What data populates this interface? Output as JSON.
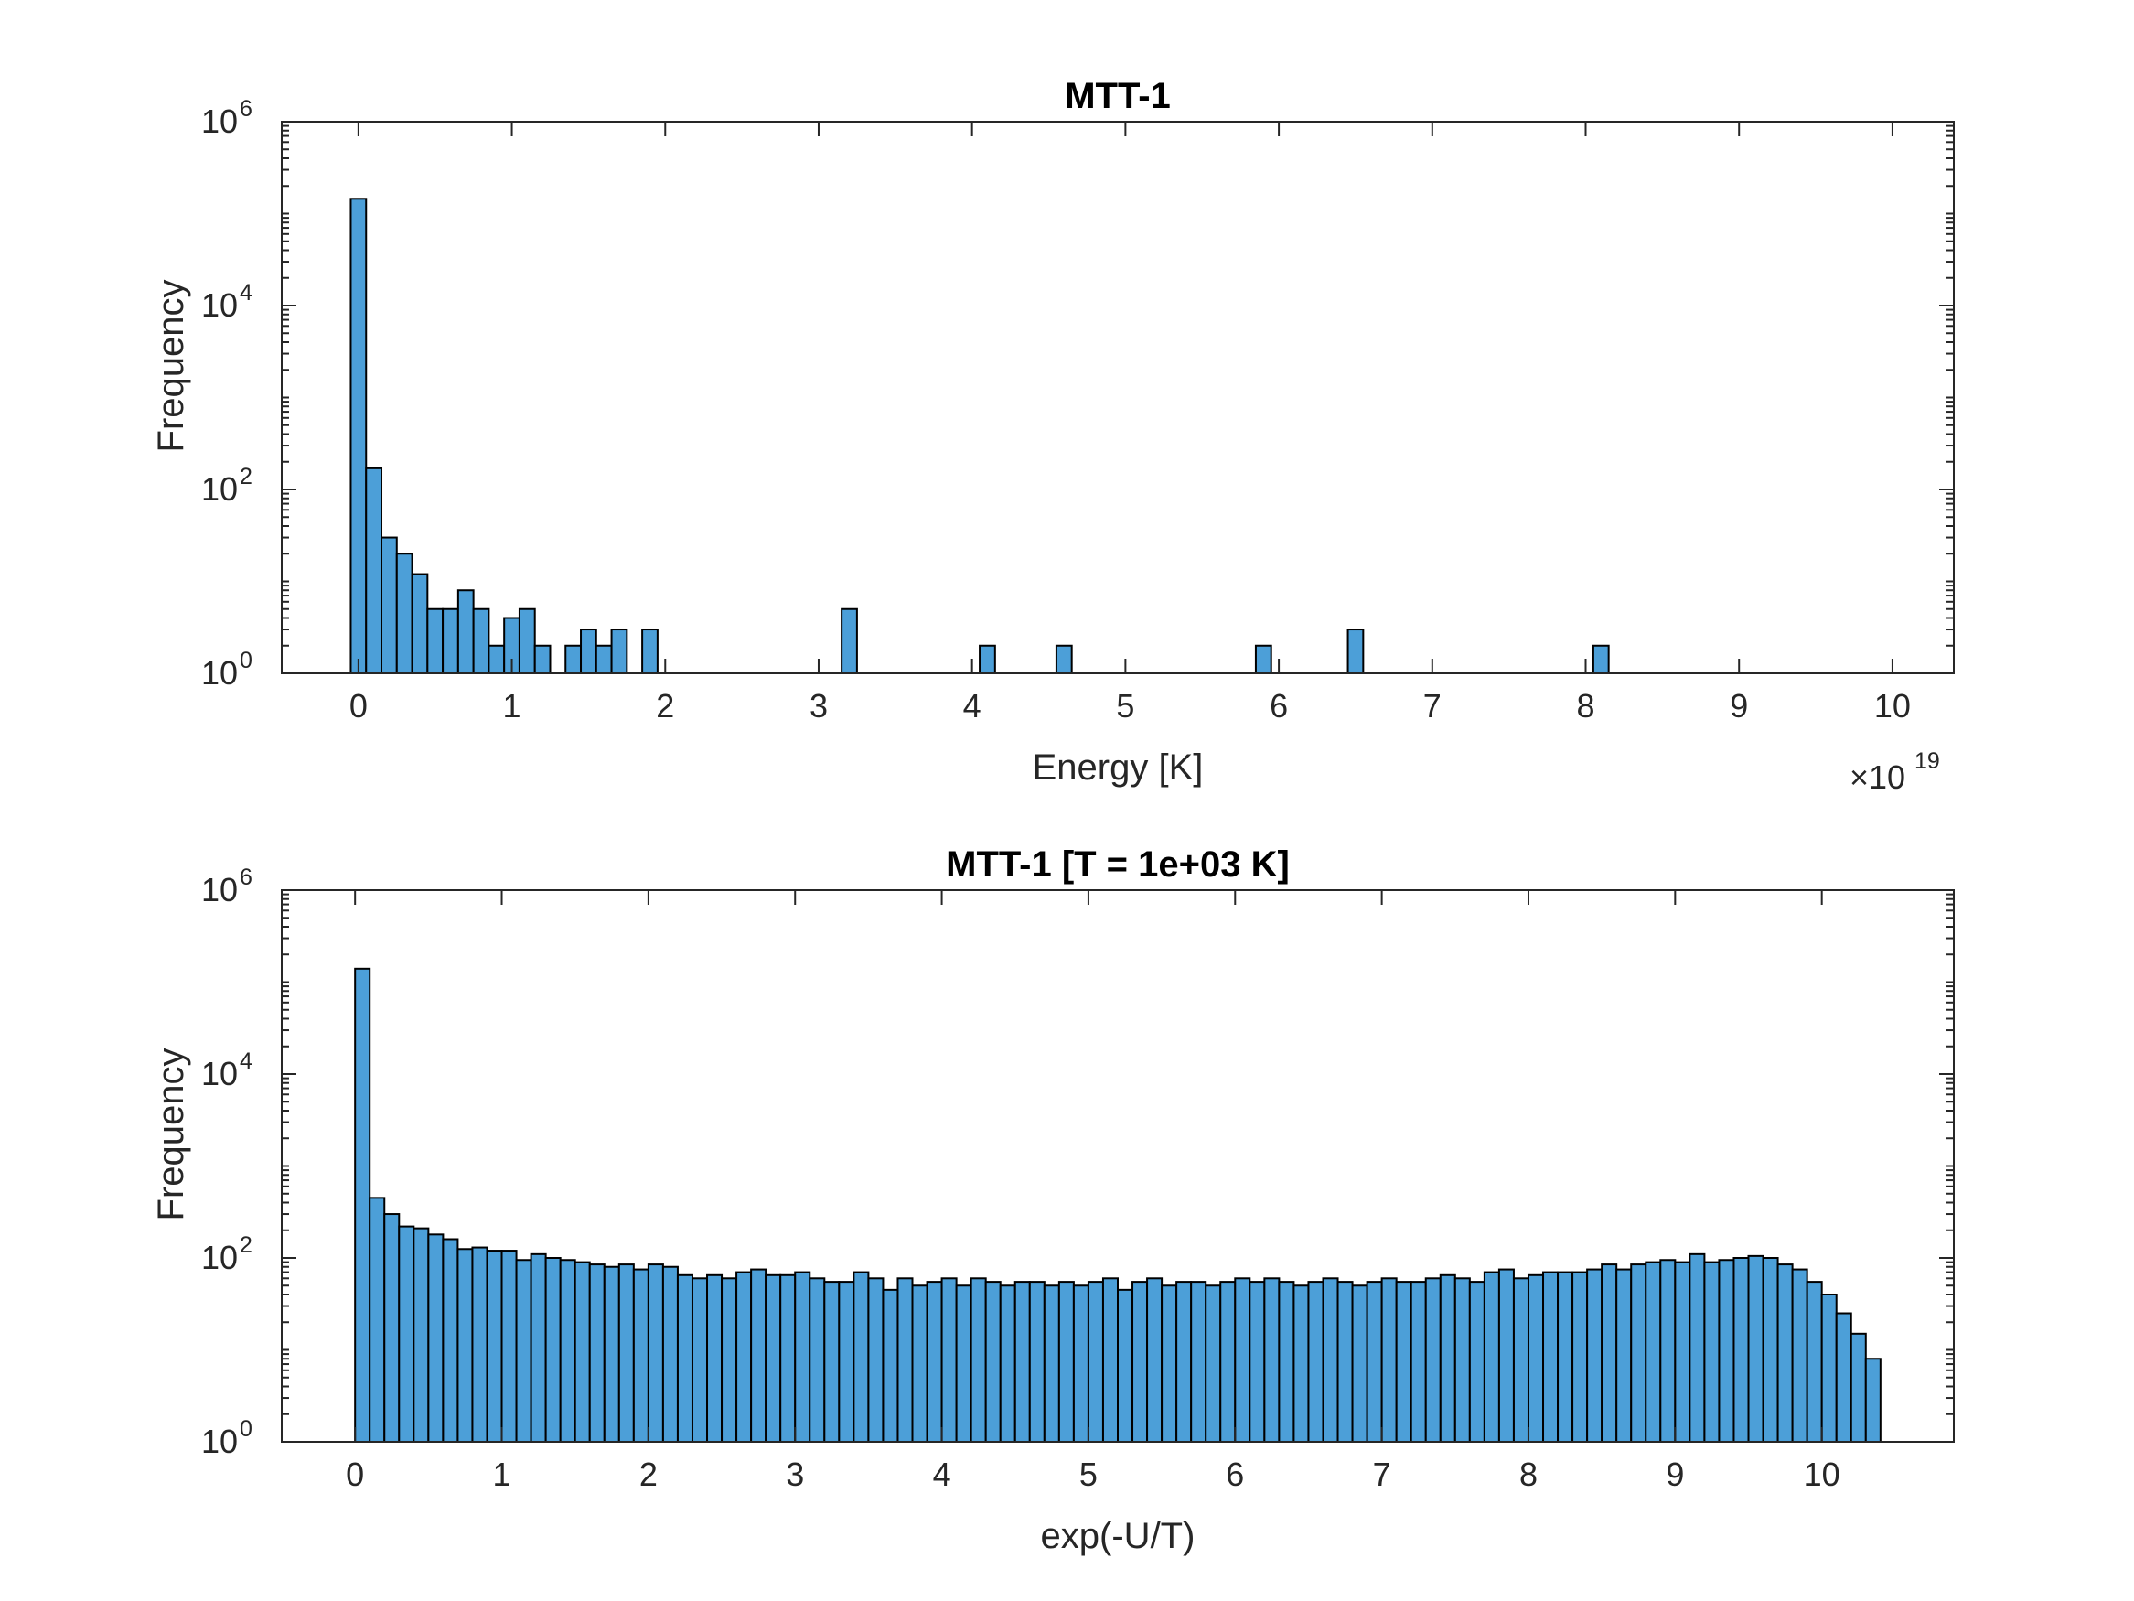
{
  "chart_data": [
    {
      "type": "bar",
      "title": "MTT-1",
      "xlabel": "Energy [K]",
      "ylabel": "Frequency",
      "x_multiplier_label": "×10",
      "x_multiplier_exponent": "19",
      "yscale": "log",
      "ylim": [
        1,
        1000000
      ],
      "xlim": [
        -0.5,
        10.4
      ],
      "x_ticks": [
        0,
        1,
        2,
        3,
        4,
        5,
        6,
        7,
        8,
        9,
        10
      ],
      "y_ticks": [
        {
          "value": 1,
          "base": "10",
          "exp": "0"
        },
        {
          "value": 100,
          "base": "10",
          "exp": "2"
        },
        {
          "value": 10000,
          "base": "10",
          "exp": "4"
        },
        {
          "value": 1000000,
          "base": "10",
          "exp": "6"
        }
      ],
      "bin_start": -0.05,
      "bin_width": 0.1,
      "values": [
        145000,
        170,
        30,
        20,
        12,
        5,
        5,
        8,
        5,
        2,
        4,
        5,
        2,
        0,
        2,
        3,
        2,
        3,
        0,
        3,
        0,
        0,
        0,
        0,
        0,
        0,
        0,
        0,
        0,
        0,
        0,
        0,
        5,
        0,
        0,
        0,
        0,
        0,
        0,
        0,
        0,
        2,
        0,
        0,
        0,
        0,
        2,
        0,
        0,
        0,
        0,
        0,
        0,
        0,
        0,
        0,
        0,
        0,
        0,
        2,
        0,
        0,
        0,
        0,
        0,
        3,
        0,
        0,
        0,
        0,
        0,
        0,
        0,
        0,
        0,
        0,
        0,
        0,
        0,
        0,
        0,
        2,
        0,
        0,
        0,
        0,
        0,
        0,
        0,
        0,
        0,
        0,
        0,
        0,
        0,
        0,
        0,
        0,
        0,
        0,
        0,
        0,
        0,
        0,
        0
      ],
      "grid": false,
      "color": "#4c9fd8"
    },
    {
      "type": "bar",
      "title": "MTT-1 [T = 1e+03 K]",
      "xlabel": "exp(-U/T)",
      "ylabel": "Frequency",
      "yscale": "log",
      "ylim": [
        1,
        1000000
      ],
      "xlim": [
        -0.5,
        10.9
      ],
      "x_ticks": [
        0,
        1,
        2,
        3,
        4,
        5,
        6,
        7,
        8,
        9,
        10
      ],
      "y_ticks": [
        {
          "value": 1,
          "base": "10",
          "exp": "0"
        },
        {
          "value": 100,
          "base": "10",
          "exp": "2"
        },
        {
          "value": 10000,
          "base": "10",
          "exp": "4"
        },
        {
          "value": 1000000,
          "base": "10",
          "exp": "6"
        }
      ],
      "bin_start": 0,
      "bin_width": 0.1,
      "values": [
        140000,
        450,
        300,
        220,
        210,
        180,
        160,
        125,
        130,
        120,
        120,
        95,
        110,
        100,
        95,
        90,
        85,
        80,
        85,
        75,
        85,
        80,
        65,
        60,
        65,
        60,
        70,
        75,
        65,
        65,
        70,
        60,
        55,
        55,
        70,
        60,
        45,
        60,
        50,
        55,
        60,
        50,
        60,
        55,
        50,
        55,
        55,
        50,
        55,
        50,
        55,
        60,
        45,
        55,
        60,
        50,
        55,
        55,
        50,
        55,
        60,
        55,
        60,
        55,
        50,
        55,
        60,
        55,
        50,
        55,
        60,
        55,
        55,
        60,
        65,
        60,
        55,
        70,
        75,
        60,
        65,
        70,
        70,
        70,
        75,
        85,
        75,
        85,
        90,
        95,
        90,
        110,
        90,
        95,
        100,
        105,
        100,
        85,
        75,
        55,
        40,
        25,
        15,
        8
      ],
      "grid": false,
      "color": "#4c9fd8"
    }
  ]
}
